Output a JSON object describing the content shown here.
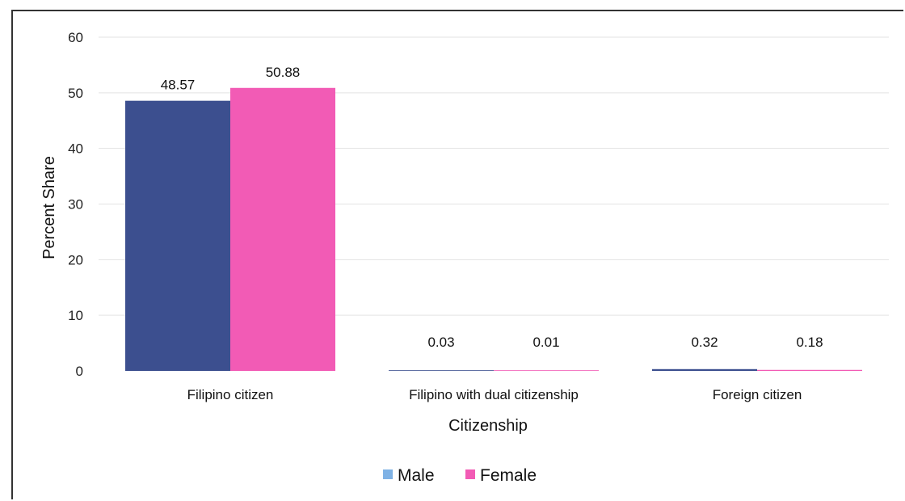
{
  "chart_data": {
    "type": "bar",
    "categories": [
      "Filipino citizen",
      "Filipino with dual citizenship",
      "Foreign citizen"
    ],
    "series": [
      {
        "name": "Male",
        "values": [
          48.57,
          0.03,
          0.32
        ],
        "labels": [
          "48.57",
          "0.03",
          "0.32"
        ],
        "color": "#3c4f8f"
      },
      {
        "name": "Female",
        "values": [
          50.88,
          0.01,
          0.18
        ],
        "labels": [
          "50.88",
          "0.01",
          "0.18"
        ],
        "color": "#f25bb5"
      }
    ],
    "legend_colors": [
      "#7fb2e5",
      "#f25bb5"
    ],
    "xlabel": "Citizenship",
    "ylabel": "Percent Share",
    "ylim": [
      0,
      60
    ],
    "yticks": [
      "0",
      "10",
      "20",
      "30",
      "40",
      "50",
      "60"
    ],
    "grid": true,
    "legend_position": "bottom"
  }
}
